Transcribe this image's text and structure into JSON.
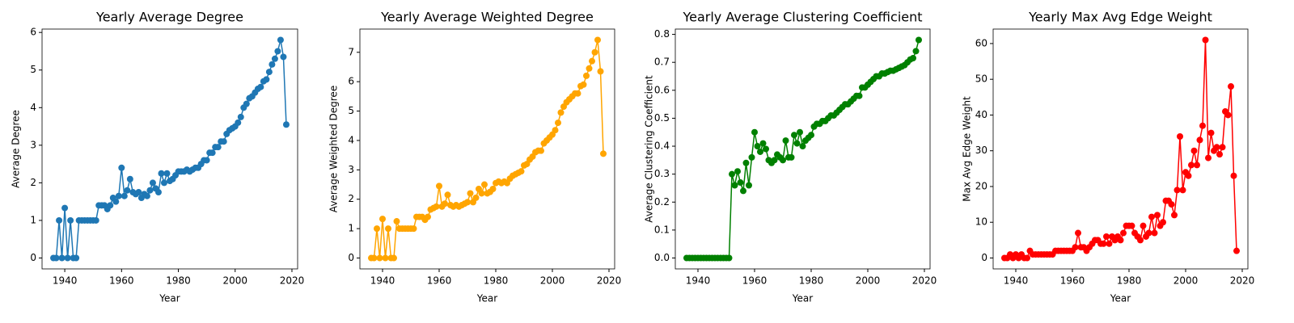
{
  "chart_data": [
    {
      "type": "line",
      "title": "Yearly Average Degree",
      "x_label": "Year",
      "y_label": "Average Degree",
      "color": "#1f77b4",
      "xlim": [
        1932,
        2022
      ],
      "xticks": [
        1940,
        1960,
        1980,
        2000,
        2020
      ],
      "ylim": [
        -0.29,
        6.09
      ],
      "yticks": [
        0,
        1,
        2,
        3,
        4,
        5,
        6
      ],
      "x": [
        1936,
        1937,
        1938,
        1939,
        1940,
        1941,
        1942,
        1943,
        1944,
        1945,
        1946,
        1947,
        1948,
        1949,
        1950,
        1951,
        1952,
        1953,
        1954,
        1955,
        1956,
        1957,
        1958,
        1959,
        1960,
        1961,
        1962,
        1963,
        1964,
        1965,
        1966,
        1967,
        1968,
        1969,
        1970,
        1971,
        1972,
        1973,
        1974,
        1975,
        1976,
        1977,
        1978,
        1979,
        1980,
        1981,
        1982,
        1983,
        1984,
        1985,
        1986,
        1987,
        1988,
        1989,
        1990,
        1991,
        1992,
        1993,
        1994,
        1995,
        1996,
        1997,
        1998,
        1999,
        2000,
        2001,
        2002,
        2003,
        2004,
        2005,
        2006,
        2007,
        2008,
        2009,
        2010,
        2011,
        2012,
        2013,
        2014,
        2015,
        2016,
        2017,
        2018
      ],
      "values": [
        0,
        0,
        1,
        0,
        1.33,
        0,
        1,
        0,
        0,
        1,
        1,
        1,
        1,
        1,
        1,
        1,
        1.4,
        1.4,
        1.4,
        1.3,
        1.4,
        1.6,
        1.5,
        1.65,
        2.4,
        1.65,
        1.8,
        2.1,
        1.75,
        1.7,
        1.75,
        1.6,
        1.7,
        1.65,
        1.8,
        2.0,
        1.85,
        1.75,
        2.25,
        2.0,
        2.25,
        2.05,
        2.1,
        2.2,
        2.3,
        2.3,
        2.3,
        2.35,
        2.3,
        2.35,
        2.4,
        2.4,
        2.5,
        2.6,
        2.6,
        2.8,
        2.8,
        2.95,
        2.95,
        3.1,
        3.1,
        3.3,
        3.4,
        3.45,
        3.5,
        3.6,
        3.75,
        4.0,
        4.1,
        4.25,
        4.3,
        4.4,
        4.5,
        4.55,
        4.7,
        4.75,
        4.95,
        5.15,
        5.3,
        5.5,
        5.8,
        5.35,
        3.55
      ]
    },
    {
      "type": "line",
      "title": "Yearly Average Weighted Degree",
      "x_label": "Year",
      "y_label": "Average Weighted Degree",
      "color": "#ffa500",
      "xlim": [
        1932,
        2022
      ],
      "xticks": [
        1940,
        1960,
        1980,
        2000,
        2020
      ],
      "ylim": [
        -0.37,
        7.79
      ],
      "yticks": [
        0,
        1,
        2,
        3,
        4,
        5,
        6,
        7
      ],
      "x": [
        1936,
        1937,
        1938,
        1939,
        1940,
        1941,
        1942,
        1943,
        1944,
        1945,
        1946,
        1947,
        1948,
        1949,
        1950,
        1951,
        1952,
        1953,
        1954,
        1955,
        1956,
        1957,
        1958,
        1959,
        1960,
        1961,
        1962,
        1963,
        1964,
        1965,
        1966,
        1967,
        1968,
        1969,
        1970,
        1971,
        1972,
        1973,
        1974,
        1975,
        1976,
        1977,
        1978,
        1979,
        1980,
        1981,
        1982,
        1983,
        1984,
        1985,
        1986,
        1987,
        1988,
        1989,
        1990,
        1991,
        1992,
        1993,
        1994,
        1995,
        1996,
        1997,
        1998,
        1999,
        2000,
        2001,
        2002,
        2003,
        2004,
        2005,
        2006,
        2007,
        2008,
        2009,
        2010,
        2011,
        2012,
        2013,
        2014,
        2015,
        2016,
        2017,
        2018
      ],
      "values": [
        0,
        0,
        1,
        0,
        1.33,
        0,
        1,
        0,
        0,
        1.25,
        1,
        1,
        1,
        1,
        1,
        1,
        1.4,
        1.4,
        1.4,
        1.3,
        1.4,
        1.65,
        1.7,
        1.75,
        2.45,
        1.75,
        1.85,
        2.15,
        1.8,
        1.75,
        1.8,
        1.75,
        1.8,
        1.85,
        1.9,
        2.2,
        1.9,
        2.05,
        2.35,
        2.2,
        2.5,
        2.2,
        2.25,
        2.35,
        2.55,
        2.6,
        2.55,
        2.6,
        2.55,
        2.7,
        2.8,
        2.85,
        2.9,
        2.95,
        3.15,
        3.2,
        3.35,
        3.45,
        3.6,
        3.65,
        3.65,
        3.9,
        4.0,
        4.1,
        4.2,
        4.35,
        4.6,
        4.95,
        5.15,
        5.3,
        5.4,
        5.5,
        5.6,
        5.6,
        5.85,
        5.9,
        6.2,
        6.45,
        6.7,
        7.0,
        7.42,
        6.35,
        3.55
      ]
    },
    {
      "type": "line",
      "title": "Yearly Average Clustering Coefficient",
      "x_label": "Year",
      "y_label": "Average Clustering Coefficient",
      "color": "#008000",
      "xlim": [
        1932,
        2022
      ],
      "xticks": [
        1940,
        1960,
        1980,
        2000,
        2020
      ],
      "ylim": [
        -0.039,
        0.819
      ],
      "yticks": [
        {
          "value": 0,
          "label": "0.0"
        },
        0.1,
        0.2,
        0.3,
        0.4,
        0.5,
        0.6,
        0.7,
        0.8
      ],
      "x": [
        1936,
        1937,
        1938,
        1939,
        1940,
        1941,
        1942,
        1943,
        1944,
        1945,
        1946,
        1947,
        1948,
        1949,
        1950,
        1951,
        1952,
        1953,
        1954,
        1955,
        1956,
        1957,
        1958,
        1959,
        1960,
        1961,
        1962,
        1963,
        1964,
        1965,
        1966,
        1967,
        1968,
        1969,
        1970,
        1971,
        1972,
        1973,
        1974,
        1975,
        1976,
        1977,
        1978,
        1979,
        1980,
        1981,
        1982,
        1983,
        1984,
        1985,
        1986,
        1987,
        1988,
        1989,
        1990,
        1991,
        1992,
        1993,
        1994,
        1995,
        1996,
        1997,
        1998,
        1999,
        2000,
        2001,
        2002,
        2003,
        2004,
        2005,
        2006,
        2007,
        2008,
        2009,
        2010,
        2011,
        2012,
        2013,
        2014,
        2015,
        2016,
        2017,
        2018
      ],
      "values": [
        0,
        0,
        0,
        0,
        0,
        0,
        0,
        0,
        0,
        0,
        0,
        0,
        0,
        0,
        0,
        0,
        0.3,
        0.26,
        0.31,
        0.27,
        0.24,
        0.34,
        0.26,
        0.36,
        0.45,
        0.4,
        0.38,
        0.41,
        0.39,
        0.35,
        0.34,
        0.35,
        0.37,
        0.36,
        0.35,
        0.42,
        0.36,
        0.36,
        0.44,
        0.41,
        0.45,
        0.4,
        0.42,
        0.43,
        0.44,
        0.47,
        0.48,
        0.48,
        0.49,
        0.49,
        0.5,
        0.51,
        0.51,
        0.52,
        0.53,
        0.54,
        0.55,
        0.55,
        0.56,
        0.57,
        0.58,
        0.58,
        0.61,
        0.61,
        0.62,
        0.63,
        0.64,
        0.65,
        0.65,
        0.66,
        0.66,
        0.665,
        0.67,
        0.67,
        0.675,
        0.68,
        0.685,
        0.69,
        0.7,
        0.71,
        0.715,
        0.74,
        0.78
      ]
    },
    {
      "type": "line",
      "title": "Yearly Max Avg Edge Weight",
      "x_label": "Year",
      "y_label": "Max Avg Edge Weight",
      "color": "#ff0000",
      "xlim": [
        1932,
        2022
      ],
      "xticks": [
        1940,
        1960,
        1980,
        2000,
        2020
      ],
      "ylim": [
        -3.05,
        64.05
      ],
      "yticks": [
        0,
        10,
        20,
        30,
        40,
        50,
        60
      ],
      "x": [
        1936,
        1937,
        1938,
        1939,
        1940,
        1941,
        1942,
        1943,
        1944,
        1945,
        1946,
        1947,
        1948,
        1949,
        1950,
        1951,
        1952,
        1953,
        1954,
        1955,
        1956,
        1957,
        1958,
        1959,
        1960,
        1961,
        1962,
        1963,
        1964,
        1965,
        1966,
        1967,
        1968,
        1969,
        1970,
        1971,
        1972,
        1973,
        1974,
        1975,
        1976,
        1977,
        1978,
        1979,
        1980,
        1981,
        1982,
        1983,
        1984,
        1985,
        1986,
        1987,
        1988,
        1989,
        1990,
        1991,
        1992,
        1993,
        1994,
        1995,
        1996,
        1997,
        1998,
        1999,
        2000,
        2001,
        2002,
        2003,
        2004,
        2005,
        2006,
        2007,
        2008,
        2009,
        2010,
        2011,
        2012,
        2013,
        2014,
        2015,
        2016,
        2017,
        2018
      ],
      "values": [
        0,
        0,
        1,
        0,
        1,
        0,
        1,
        0,
        0,
        2,
        1,
        1,
        1,
        1,
        1,
        1,
        1,
        1,
        2,
        2,
        2,
        2,
        2,
        2,
        2,
        3,
        7,
        3,
        3,
        2,
        3,
        4,
        5,
        5,
        4,
        4,
        6,
        4,
        6,
        5,
        6,
        5,
        7,
        9,
        9,
        9,
        7,
        6,
        5,
        9,
        6,
        7,
        11.5,
        7,
        12,
        9,
        10,
        16,
        16,
        15,
        12,
        19,
        34,
        19,
        24,
        23,
        26,
        30,
        26,
        33,
        37,
        61,
        28,
        35,
        30,
        31,
        29,
        31,
        41,
        40,
        48,
        23,
        2
      ]
    }
  ]
}
